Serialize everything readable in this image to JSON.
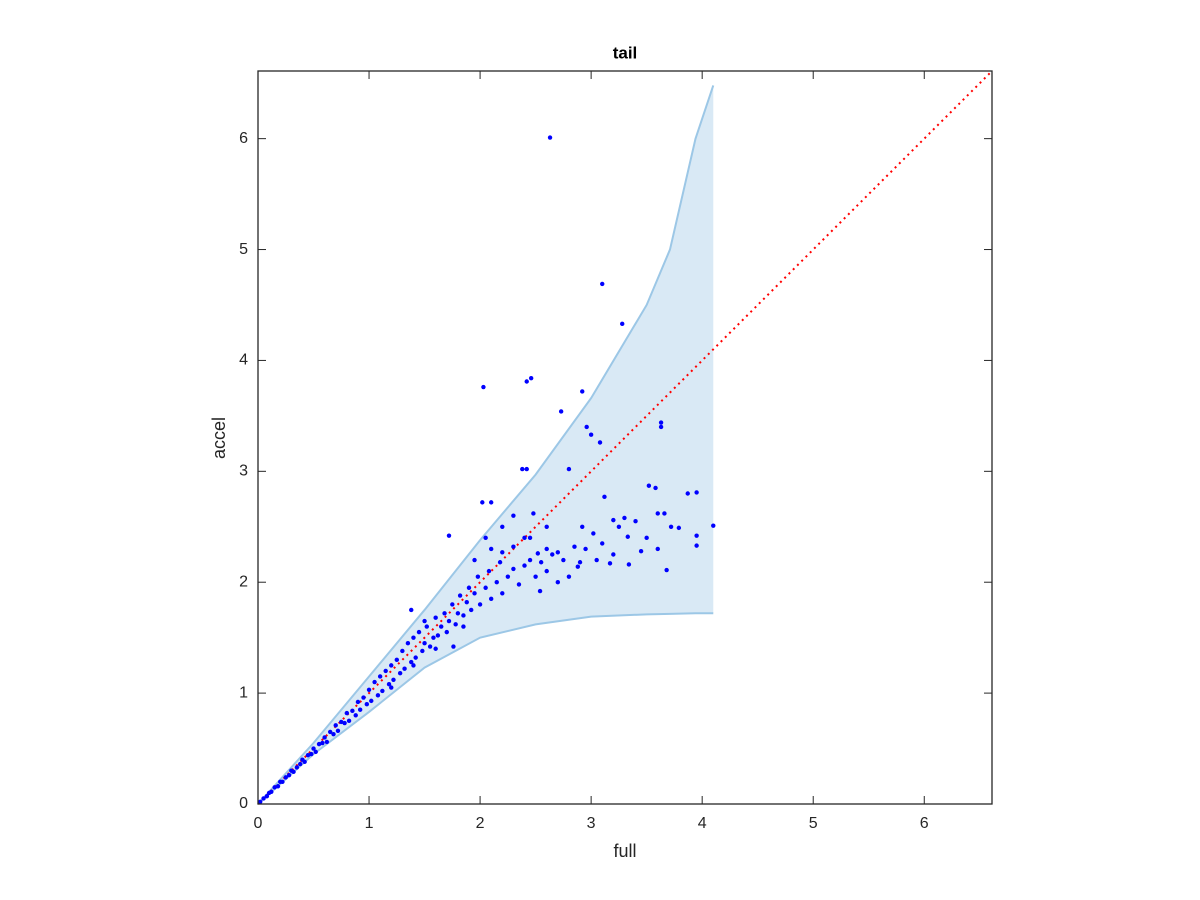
{
  "chart_data": {
    "type": "scatter",
    "title": "tail",
    "x_label": "full",
    "y_label": "accel",
    "xlim": [
      0,
      6.61
    ],
    "ylim": [
      0,
      6.61
    ],
    "xticks": [
      0,
      1,
      2,
      3,
      4,
      5,
      6
    ],
    "yticks": [
      0,
      1,
      2,
      3,
      4,
      5,
      6
    ],
    "band": {
      "color": "#9cc7e6",
      "fill": "#d9e9f5",
      "x": [
        0,
        0.5,
        1,
        1.5,
        2,
        2.5,
        3,
        3.5,
        3.71,
        3.94,
        4.1
      ],
      "upper": [
        0,
        0.55,
        1.15,
        1.75,
        2.38,
        2.97,
        3.66,
        4.5,
        5,
        6,
        6.48
      ],
      "lower": [
        0,
        0.45,
        0.83,
        1.23,
        1.5,
        1.62,
        1.69,
        1.71,
        1.715,
        1.72,
        1.72
      ]
    },
    "reference_line": {
      "color": "#ff0000",
      "x": [
        0,
        6.61
      ],
      "y": [
        0,
        6.61
      ]
    },
    "points": {
      "color": "#0000ff",
      "x": [
        2.63,
        3.1,
        3.28,
        2.03,
        2.42,
        2.46,
        2.92,
        2.73,
        2.96,
        3.0,
        3.08,
        3.63,
        3.63,
        2.38,
        2.42,
        2.8,
        3.52,
        3.58,
        3.87,
        3.95,
        3.12,
        2.02,
        2.1,
        4.1,
        3.6,
        3.66,
        3.95,
        3.95,
        3.72,
        3.79,
        3.68,
        3.34,
        3.33,
        3.02,
        3.2,
        3.3,
        3.4,
        3.17,
        2.88,
        2.7,
        2.52,
        2.6,
        2.54,
        2.85,
        2.92,
        2.4,
        2.3,
        2.2,
        2.48,
        1.72,
        1.38,
        1.85,
        1.5,
        1.76,
        0.02,
        0.05,
        0.08,
        0.1,
        0.12,
        0.15,
        0.18,
        0.2,
        0.22,
        0.25,
        0.28,
        0.3,
        0.32,
        0.35,
        0.38,
        0.4,
        0.42,
        0.45,
        0.48,
        0.5,
        0.52,
        0.55,
        0.58,
        0.6,
        0.62,
        0.65,
        0.68,
        0.7,
        0.72,
        0.75,
        0.78,
        0.8,
        0.82,
        0.85,
        0.88,
        0.9,
        0.92,
        0.95,
        0.98,
        1.0,
        1.02,
        1.05,
        1.08,
        1.1,
        1.12,
        1.15,
        1.18,
        1.2,
        1.22,
        1.25,
        1.28,
        1.3,
        1.32,
        1.35,
        1.38,
        1.4,
        1.42,
        1.45,
        1.48,
        1.5,
        1.52,
        1.55,
        1.58,
        1.6,
        1.62,
        1.65,
        1.68,
        1.7,
        1.72,
        1.75,
        1.78,
        1.8,
        1.82,
        1.85,
        1.88,
        1.9,
        1.92,
        1.95,
        1.98,
        2.0,
        2.05,
        2.08,
        2.1,
        2.15,
        2.18,
        2.2,
        2.25,
        2.3,
        2.35,
        2.4,
        2.45,
        2.5,
        2.55,
        2.6,
        2.65,
        2.7,
        2.75,
        2.8,
        2.9,
        2.95,
        3.05,
        3.1,
        3.2,
        3.25,
        3.45,
        3.5,
        3.6,
        2.1,
        1.95,
        2.3,
        2.2,
        2.05,
        2.6,
        2.45,
        1.6,
        1.4,
        1.2
      ],
      "y": [
        6.01,
        4.69,
        4.33,
        3.76,
        3.81,
        3.84,
        3.72,
        3.54,
        3.4,
        3.33,
        3.26,
        3.44,
        3.4,
        3.02,
        3.02,
        3.02,
        2.87,
        2.85,
        2.8,
        2.81,
        2.77,
        2.72,
        2.72,
        2.51,
        2.62,
        2.62,
        2.33,
        2.42,
        2.5,
        2.49,
        2.11,
        2.16,
        2.41,
        2.44,
        2.56,
        2.58,
        2.55,
        2.17,
        2.14,
        2.27,
        2.26,
        2.3,
        1.92,
        2.32,
        2.5,
        2.4,
        2.32,
        2.27,
        2.62,
        2.42,
        1.75,
        1.6,
        1.65,
        1.42,
        0.02,
        0.05,
        0.07,
        0.1,
        0.11,
        0.15,
        0.16,
        0.2,
        0.2,
        0.24,
        0.26,
        0.3,
        0.29,
        0.33,
        0.36,
        0.4,
        0.38,
        0.44,
        0.45,
        0.5,
        0.47,
        0.54,
        0.55,
        0.6,
        0.56,
        0.65,
        0.63,
        0.71,
        0.66,
        0.74,
        0.73,
        0.82,
        0.75,
        0.84,
        0.8,
        0.92,
        0.85,
        0.96,
        0.9,
        1.03,
        0.93,
        1.1,
        0.98,
        1.15,
        1.02,
        1.2,
        1.08,
        1.25,
        1.12,
        1.3,
        1.18,
        1.38,
        1.22,
        1.45,
        1.28,
        1.5,
        1.32,
        1.55,
        1.38,
        1.45,
        1.6,
        1.42,
        1.5,
        1.68,
        1.52,
        1.6,
        1.72,
        1.55,
        1.65,
        1.8,
        1.62,
        1.72,
        1.88,
        1.7,
        1.82,
        1.95,
        1.75,
        1.9,
        2.05,
        1.8,
        1.95,
        2.1,
        1.85,
        2.0,
        2.18,
        1.9,
        2.05,
        2.12,
        1.98,
        2.15,
        2.2,
        2.05,
        2.18,
        2.1,
        2.25,
        2.0,
        2.2,
        2.05,
        2.18,
        2.3,
        2.2,
        2.35,
        2.25,
        2.5,
        2.28,
        2.4,
        2.3,
        2.3,
        2.2,
        2.6,
        2.5,
        2.4,
        2.5,
        2.4,
        1.4,
        1.25,
        1.05
      ]
    }
  }
}
